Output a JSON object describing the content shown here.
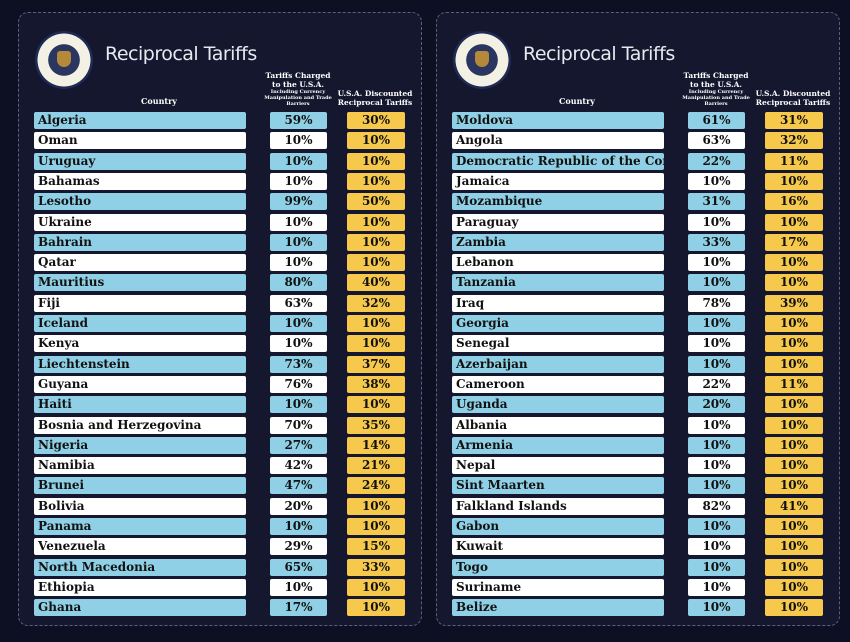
{
  "title": "Reciprocal Tariffs",
  "headers": {
    "country": "Country",
    "tariff_line1": "Tariffs Charged",
    "tariff_line2": "to the U.S.A.",
    "tariff_sub": "Including Currency Manipulation and Trade Barriers",
    "reciprocal": "U.S.A. Discounted Reciprocal Tariffs"
  },
  "colors": {
    "background": "#14172e",
    "row_blue": "#8fd0e6",
    "row_white": "#ffffff",
    "reciprocal": "#f6c94c"
  },
  "logo": "Seal of the President of the United States",
  "tables": [
    [
      [
        "Algeria",
        "59%",
        "30%"
      ],
      [
        "Oman",
        "10%",
        "10%"
      ],
      [
        "Uruguay",
        "10%",
        "10%"
      ],
      [
        "Bahamas",
        "10%",
        "10%"
      ],
      [
        "Lesotho",
        "99%",
        "50%"
      ],
      [
        "Ukraine",
        "10%",
        "10%"
      ],
      [
        "Bahrain",
        "10%",
        "10%"
      ],
      [
        "Qatar",
        "10%",
        "10%"
      ],
      [
        "Mauritius",
        "80%",
        "40%"
      ],
      [
        "Fiji",
        "63%",
        "32%"
      ],
      [
        "Iceland",
        "10%",
        "10%"
      ],
      [
        "Kenya",
        "10%",
        "10%"
      ],
      [
        "Liechtenstein",
        "73%",
        "37%"
      ],
      [
        "Guyana",
        "76%",
        "38%"
      ],
      [
        "Haiti",
        "10%",
        "10%"
      ],
      [
        "Bosnia and Herzegovina",
        "70%",
        "35%"
      ],
      [
        "Nigeria",
        "27%",
        "14%"
      ],
      [
        "Namibia",
        "42%",
        "21%"
      ],
      [
        "Brunei",
        "47%",
        "24%"
      ],
      [
        "Bolivia",
        "20%",
        "10%"
      ],
      [
        "Panama",
        "10%",
        "10%"
      ],
      [
        "Venezuela",
        "29%",
        "15%"
      ],
      [
        "North Macedonia",
        "65%",
        "33%"
      ],
      [
        "Ethiopia",
        "10%",
        "10%"
      ],
      [
        "Ghana",
        "17%",
        "10%"
      ]
    ],
    [
      [
        "Moldova",
        "61%",
        "31%"
      ],
      [
        "Angola",
        "63%",
        "32%"
      ],
      [
        "Democratic Republic of the Congo",
        "22%",
        "11%"
      ],
      [
        "Jamaica",
        "10%",
        "10%"
      ],
      [
        "Mozambique",
        "31%",
        "16%"
      ],
      [
        "Paraguay",
        "10%",
        "10%"
      ],
      [
        "Zambia",
        "33%",
        "17%"
      ],
      [
        "Lebanon",
        "10%",
        "10%"
      ],
      [
        "Tanzania",
        "10%",
        "10%"
      ],
      [
        "Iraq",
        "78%",
        "39%"
      ],
      [
        "Georgia",
        "10%",
        "10%"
      ],
      [
        "Senegal",
        "10%",
        "10%"
      ],
      [
        "Azerbaijan",
        "10%",
        "10%"
      ],
      [
        "Cameroon",
        "22%",
        "11%"
      ],
      [
        "Uganda",
        "20%",
        "10%"
      ],
      [
        "Albania",
        "10%",
        "10%"
      ],
      [
        "Armenia",
        "10%",
        "10%"
      ],
      [
        "Nepal",
        "10%",
        "10%"
      ],
      [
        "Sint Maarten",
        "10%",
        "10%"
      ],
      [
        "Falkland Islands",
        "82%",
        "41%"
      ],
      [
        "Gabon",
        "10%",
        "10%"
      ],
      [
        "Kuwait",
        "10%",
        "10%"
      ],
      [
        "Togo",
        "10%",
        "10%"
      ],
      [
        "Suriname",
        "10%",
        "10%"
      ],
      [
        "Belize",
        "10%",
        "10%"
      ]
    ]
  ]
}
